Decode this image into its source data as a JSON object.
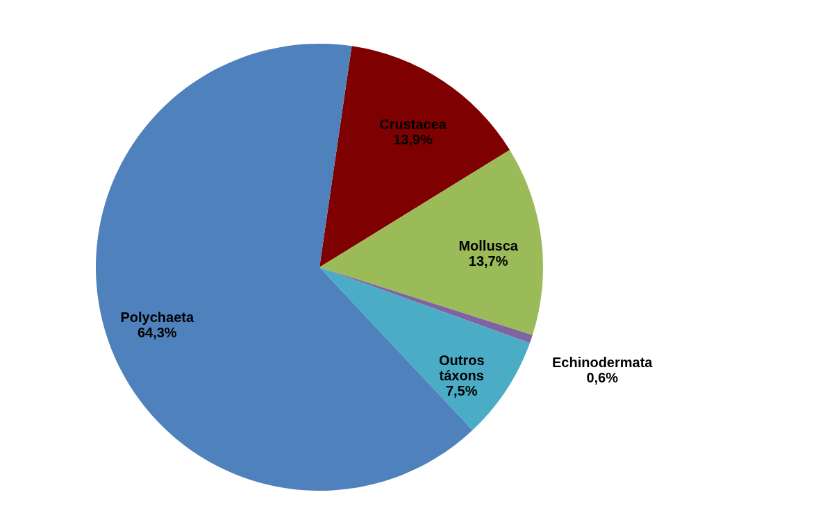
{
  "chart_data": {
    "type": "pie",
    "categories": [
      "Crustacea",
      "Mollusca",
      "Echinodermata",
      "Outros táxons",
      "Polychaeta"
    ],
    "values": [
      13.9,
      13.7,
      0.6,
      7.5,
      64.3
    ],
    "colors": [
      "#7f0000",
      "#9bbb59",
      "#8064a2",
      "#4bacc6",
      "#4f81bd"
    ],
    "value_labels": [
      "13,9%",
      "13,7%",
      "0,6%",
      "7,5%",
      "64,3%"
    ]
  }
}
